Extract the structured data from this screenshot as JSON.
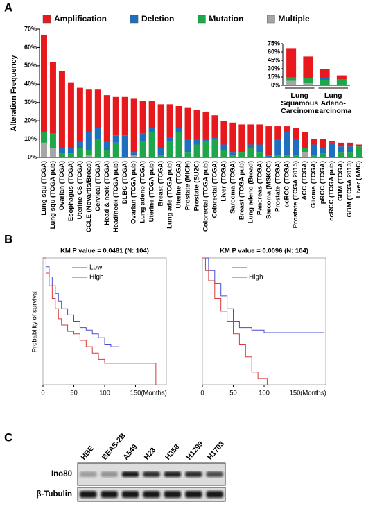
{
  "panels": [
    "A",
    "B",
    "C"
  ],
  "chart_data": [
    {
      "type": "stacked_bar",
      "ylabel": "Alteration Frequency",
      "legend": "top",
      "categories": [
        "Lung squ (TCGA)",
        "Lung squ (TCGA pub)",
        "Ovarian (TCGA)",
        "Esophagus (TCGA)",
        "Uterine CS (TCGA)",
        "CCLE (Novartis/Broad)",
        "Cervical (TCGA)",
        "Head & neck (TCGA)",
        "Head/neck (TCGA pub)",
        "DLBC (TCGA)",
        "Ovarian (TCGA pub)",
        "Lung adeno (TCGA)",
        "Uterine (TCGA pub)",
        "Breast (TCGA)",
        "Lung ade (TCGA pub)",
        "Uterine (TCGA)",
        "Prostate (MICH)",
        "Prostate (SU2C)",
        "Colorectal (TCGA pub)",
        "Colorectal (TCGA)",
        "Liver (TCGA)",
        "Sarcoma (TCGA)",
        "Breast (TCGA pub)",
        "Lung adeno (Broad)",
        "Pancreas (TCGA)",
        "Sarcoma (MSKCC)",
        "Prostate (TCGA)",
        "ccRCC (TCGA)",
        "Prostate (TCGA 2015)",
        "ACC (TCGA)",
        "Glioma (TCGA)",
        "pRCC (TCGA)",
        "ccRCC (TCGA pub)",
        "GBM (TCGA)",
        "GBM (TCGA 2013)",
        "Liver (AMC)"
      ],
      "series": [
        {
          "name": "Amplification",
          "color": "#e8191c",
          "values": [
            53,
            39,
            42,
            36,
            29,
            23,
            21,
            25,
            21,
            21,
            29,
            18,
            15,
            24,
            18,
            12,
            17,
            16,
            15,
            12,
            13,
            16,
            15,
            11,
            11,
            16,
            7,
            3,
            6,
            9,
            3,
            5,
            1,
            2,
            2,
            1
          ]
        },
        {
          "name": "Deletion",
          "color": "#1f6fbf",
          "values": [
            0,
            0,
            3,
            3,
            4,
            10,
            6,
            5,
            4,
            12,
            2,
            4,
            2,
            4,
            2,
            2,
            7,
            3,
            1,
            1,
            3,
            2,
            0,
            2,
            4,
            1,
            9,
            13,
            9,
            0,
            6,
            3,
            8,
            3,
            3,
            0
          ]
        },
        {
          "name": "Mutation",
          "color": "#1fa64a",
          "values": [
            6,
            8,
            2,
            2,
            5,
            3,
            10,
            4,
            8,
            0,
            0,
            9,
            14,
            1,
            9,
            14,
            3,
            7,
            9,
            10,
            4,
            1,
            3,
            5,
            3,
            0,
            1,
            1,
            1,
            2,
            1,
            2,
            0,
            3,
            3,
            6
          ]
        },
        {
          "name": "Multiple",
          "color": "#a6a6a6",
          "values": [
            8,
            5,
            0,
            0,
            0,
            1,
            0,
            0,
            0,
            0,
            1,
            0,
            0,
            0,
            0,
            0,
            0,
            0,
            0,
            0,
            0,
            0,
            0,
            0,
            0,
            0,
            0,
            0,
            0,
            3,
            0,
            0,
            0,
            0,
            0,
            0
          ]
        }
      ],
      "ylim": [
        0,
        70
      ],
      "yticks": [
        {
          "value": 0,
          "label": "0%"
        },
        {
          "value": 10,
          "label": "10%"
        },
        {
          "value": 20,
          "label": "20%"
        },
        {
          "value": 30,
          "label": "30%"
        },
        {
          "value": 40,
          "label": "40%"
        },
        {
          "value": 50,
          "label": "50%"
        },
        {
          "value": 60,
          "label": "60%"
        },
        {
          "value": 70,
          "label": "70%"
        }
      ]
    },
    {
      "type": "stacked_bar",
      "categories": [
        null,
        null,
        null,
        null
      ],
      "groups": [
        [
          "Lung",
          "Squamous",
          "Carcinoma"
        ],
        [
          "Lung",
          "Adeno-",
          "carcinoma"
        ]
      ],
      "series": [
        {
          "name": "Amplification",
          "color": "#e8191c",
          "values": [
            53,
            39,
            16,
            7
          ]
        },
        {
          "name": "Deletion",
          "color": "#1f6fbf",
          "values": [
            0,
            0,
            4,
            2
          ]
        },
        {
          "name": "Mutation",
          "color": "#1fa64a",
          "values": [
            6,
            8,
            9,
            9
          ]
        },
        {
          "name": "Multiple",
          "color": "#a6a6a6",
          "values": [
            8,
            5,
            0,
            0
          ]
        }
      ],
      "ylim": [
        0,
        75
      ],
      "yticks": [
        {
          "value": 0,
          "label": "0%"
        },
        {
          "value": 15,
          "label": "15%"
        },
        {
          "value": 30,
          "label": "30%"
        },
        {
          "value": 45,
          "label": "45%"
        },
        {
          "value": 60,
          "label": "60%"
        },
        {
          "value": 75,
          "label": "75%"
        }
      ]
    },
    {
      "type": "step",
      "title": "KM P value = 0.0481 (N: 104)",
      "ylabel": "Probability of survival",
      "xlabel": "(Months)",
      "xlim": [
        0,
        200
      ],
      "xticks": [
        0,
        50,
        100,
        150
      ],
      "ylim": [
        0,
        1
      ],
      "series": [
        {
          "name": "Low",
          "color": "#4b4bd0",
          "x": [
            0,
            5,
            10,
            15,
            20,
            25,
            30,
            40,
            50,
            60,
            70,
            80,
            90,
            100,
            110,
            123
          ],
          "values": [
            1,
            0.93,
            0.85,
            0.78,
            0.72,
            0.66,
            0.6,
            0.55,
            0.5,
            0.45,
            0.43,
            0.4,
            0.37,
            0.32,
            0.3,
            0.3
          ]
        },
        {
          "name": "High",
          "color": "#d63a3a",
          "x": [
            0,
            5,
            10,
            15,
            20,
            25,
            30,
            40,
            50,
            60,
            70,
            80,
            90,
            100,
            120,
            150,
            180,
            183
          ],
          "values": [
            1,
            0.88,
            0.78,
            0.68,
            0.6,
            0.52,
            0.47,
            0.42,
            0.4,
            0.35,
            0.3,
            0.25,
            0.2,
            0.17,
            0.17,
            0.17,
            0.17,
            0
          ]
        }
      ]
    },
    {
      "type": "step",
      "title": "KM P value = 0.0096 (N: 104)",
      "xlabel": "(Months)",
      "xlim": [
        0,
        200
      ],
      "xticks": [
        0,
        50,
        100,
        150
      ],
      "ylim": [
        0,
        1
      ],
      "series": [
        {
          "name": null,
          "color": "#4b4bd0",
          "x": [
            0,
            10,
            20,
            30,
            40,
            50,
            60,
            80,
            100,
            120,
            150,
            198
          ],
          "values": [
            1,
            0.9,
            0.8,
            0.7,
            0.6,
            0.5,
            0.45,
            0.43,
            0.41,
            0.41,
            0.41,
            0.41
          ]
        },
        {
          "name": "High",
          "color": "#d63a3a",
          "x": [
            0,
            5,
            10,
            20,
            30,
            40,
            50,
            60,
            70,
            80,
            90,
            100,
            105
          ],
          "values": [
            1,
            0.9,
            0.82,
            0.68,
            0.58,
            0.5,
            0.4,
            0.32,
            0.22,
            0.1,
            0.05,
            0.05,
            0
          ]
        }
      ]
    }
  ],
  "blot": {
    "lanes": [
      "HBE",
      "BEAS-2B",
      "A549",
      "H23",
      "H358",
      "H1299",
      "H1703"
    ],
    "rows": [
      "Ino80",
      "β-Tubulin"
    ]
  }
}
